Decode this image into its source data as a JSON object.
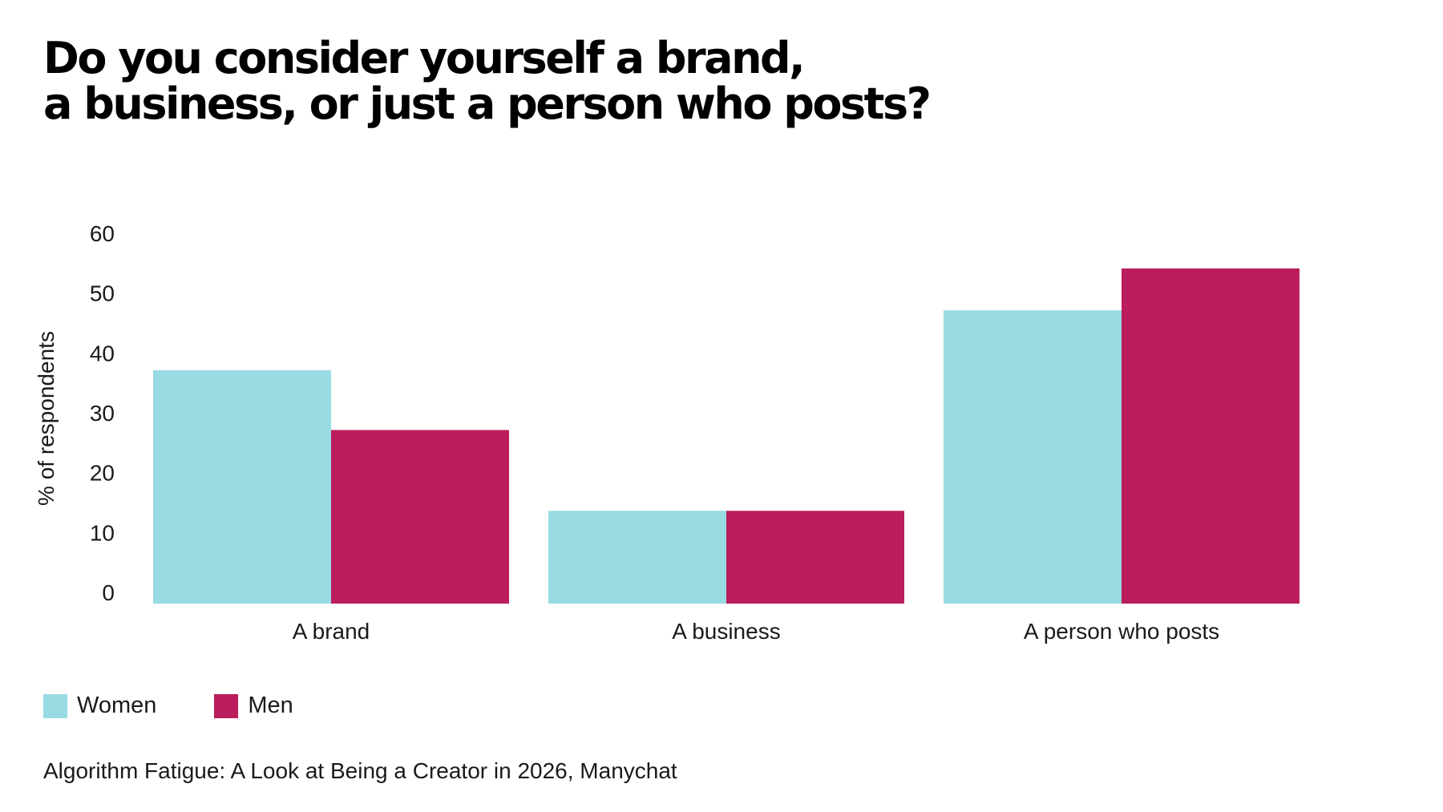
{
  "title_lines": [
    "Do you consider yourself a brand,",
    "a business, or just a person who posts?"
  ],
  "source": "Algorithm Fatigue: A Look at Being a Creator in 2026, Manychat",
  "colors": {
    "women": "#98dbe3",
    "men": "#bc1e5d"
  },
  "chart_data": {
    "type": "bar",
    "title": "Do you consider yourself a brand, a business, or just a person who posts?",
    "categories": [
      "A brand",
      "A business",
      "A person who posts"
    ],
    "series": [
      {
        "name": "Women",
        "values": [
          39,
          15.5,
          49
        ]
      },
      {
        "name": "Men",
        "values": [
          29,
          15.5,
          56
        ]
      }
    ],
    "xlabel": "",
    "ylabel": "% of respondents",
    "ylim": [
      0,
      60
    ],
    "yticks": [
      "0",
      "10",
      "20",
      "30",
      "40",
      "50",
      "60"
    ],
    "grid": false,
    "legend": "bottom-left"
  }
}
